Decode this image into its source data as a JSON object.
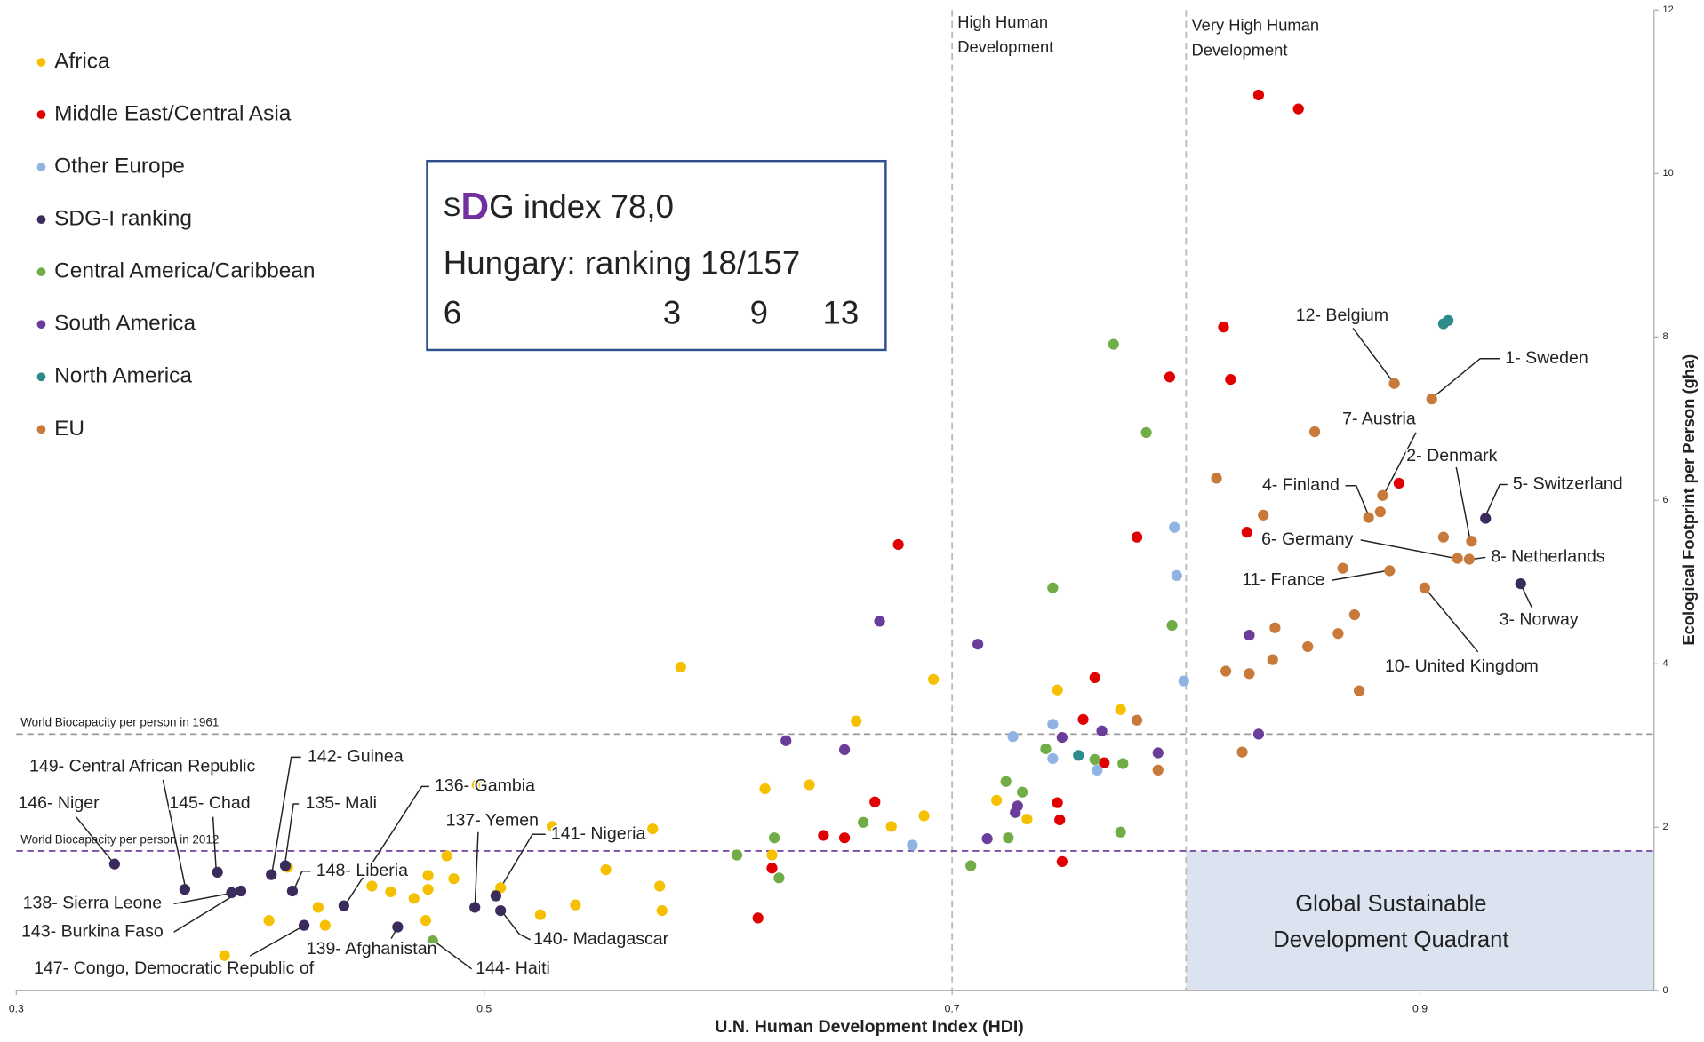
{
  "chart_data": {
    "type": "scatter",
    "xlabel": "U.N. Human Development Index  (HDI)",
    "ylabel": "Ecological Footprint per Person (gha)",
    "xlim": [
      0.3,
      1.0
    ],
    "ylim": [
      0,
      12
    ],
    "xticks": [
      0.3,
      0.5,
      0.7,
      0.9
    ],
    "yticks": [
      0,
      2,
      4,
      6,
      8,
      10,
      12
    ],
    "series": [
      {
        "name": "Africa",
        "color": "#f5c000",
        "x": [
          0.584,
          0.692,
          0.745,
          0.772,
          0.659,
          0.62,
          0.639,
          0.719,
          0.688,
          0.674,
          0.732,
          0.529,
          0.572,
          0.497,
          0.552,
          0.575,
          0.576,
          0.539,
          0.524,
          0.507,
          0.487,
          0.484,
          0.476,
          0.452,
          0.46,
          0.47,
          0.476,
          0.429,
          0.408,
          0.432,
          0.475,
          0.416,
          0.389,
          0.505,
          0.623
        ],
        "y": [
          3.96,
          3.81,
          3.68,
          3.44,
          3.3,
          2.47,
          2.52,
          2.33,
          2.14,
          2.01,
          2.1,
          2.01,
          1.98,
          2.52,
          1.48,
          1.28,
          0.98,
          1.05,
          0.93,
          1.26,
          1.37,
          1.65,
          1.41,
          1.28,
          1.21,
          1.13,
          1.24,
          1.02,
          0.86,
          0.8,
          0.86,
          1.51,
          0.43,
          1.17,
          1.66
        ]
      },
      {
        "name": "Middle East/Central Asia",
        "color": "#e00000",
        "x": [
          0.831,
          0.848,
          0.816,
          0.819,
          0.793,
          0.677,
          0.779,
          0.826,
          0.891,
          0.761,
          0.756,
          0.765,
          0.745,
          0.746,
          0.747,
          0.667,
          0.645,
          0.654,
          0.623,
          0.617
        ],
        "y": [
          10.96,
          10.79,
          8.12,
          7.48,
          7.51,
          5.46,
          5.55,
          5.61,
          6.21,
          3.83,
          3.32,
          2.79,
          2.3,
          2.09,
          1.58,
          2.31,
          1.9,
          1.87,
          1.5,
          0.89
        ]
      },
      {
        "name": "Other Europe",
        "color": "#8fb4e3",
        "x": [
          0.795,
          0.796,
          0.799,
          0.743,
          0.726,
          0.743,
          0.762,
          0.683
        ],
        "y": [
          5.67,
          5.08,
          3.79,
          3.26,
          3.11,
          2.84,
          2.7,
          1.78
        ]
      },
      {
        "name": "SDG-I ranking",
        "color": "#3b2b5c",
        "x": [
          0.342,
          0.372,
          0.386,
          0.392,
          0.396,
          0.409,
          0.415,
          0.418,
          0.423,
          0.44,
          0.496,
          0.505,
          0.507,
          0.463,
          0.943,
          0.928
        ],
        "y": [
          1.55,
          1.24,
          1.45,
          1.2,
          1.22,
          1.42,
          1.53,
          1.22,
          0.8,
          1.04,
          1.02,
          1.16,
          0.98,
          0.78,
          4.98,
          5.78
        ]
      },
      {
        "name": "Central America/Caribbean",
        "color": "#70ad47",
        "x": [
          0.769,
          0.783,
          0.743,
          0.794,
          0.74,
          0.723,
          0.73,
          0.761,
          0.773,
          0.724,
          0.772,
          0.708,
          0.662,
          0.624,
          0.608,
          0.626,
          0.478
        ],
        "y": [
          7.91,
          6.83,
          4.93,
          4.47,
          2.96,
          2.56,
          2.43,
          2.83,
          2.78,
          1.87,
          1.94,
          1.53,
          2.06,
          1.87,
          1.66,
          1.38,
          0.61
        ]
      },
      {
        "name": "South America",
        "color": "#6a3d9a",
        "x": [
          0.669,
          0.711,
          0.629,
          0.654,
          0.747,
          0.764,
          0.831,
          0.827,
          0.788,
          0.728,
          0.727,
          0.715
        ],
        "y": [
          4.52,
          4.24,
          3.06,
          2.95,
          3.1,
          3.18,
          3.14,
          4.35,
          2.91,
          2.26,
          2.18,
          1.86
        ]
      },
      {
        "name": "North America",
        "color": "#2e8b8b",
        "x": [
          0.91,
          0.912,
          0.754
        ],
        "y": [
          8.16,
          8.2,
          2.88
        ]
      },
      {
        "name": "EU",
        "color": "#c87a3a",
        "x": [
          0.905,
          0.889,
          0.855,
          0.813,
          0.884,
          0.883,
          0.878,
          0.833,
          0.91,
          0.922,
          0.916,
          0.921,
          0.887,
          0.867,
          0.902,
          0.872,
          0.865,
          0.838,
          0.852,
          0.837,
          0.827,
          0.817,
          0.874,
          0.779,
          0.824,
          0.788
        ],
        "y": [
          7.24,
          7.43,
          6.84,
          6.27,
          6.06,
          5.86,
          5.79,
          5.82,
          5.55,
          5.5,
          5.29,
          5.28,
          5.14,
          5.17,
          4.93,
          4.6,
          4.37,
          4.44,
          4.21,
          4.05,
          3.88,
          3.91,
          3.67,
          3.31,
          2.92,
          2.7
        ]
      }
    ],
    "reference_lines": [
      {
        "axis": "x",
        "value": 0.7,
        "color": "#bbbbbb",
        "label": [
          "High Human",
          "Development"
        ]
      },
      {
        "axis": "x",
        "value": 0.8,
        "color": "#bbbbbb",
        "label": [
          "Very High Human",
          "Development"
        ]
      },
      {
        "axis": "y",
        "value": 3.14,
        "color": "#999999",
        "label": "World Biocapacity per person in 1961"
      },
      {
        "axis": "y",
        "value": 1.71,
        "color": "#7b4fa6",
        "label": "World Biocapacity per person in 2012"
      }
    ],
    "quadrant": {
      "label": [
        "Global Sustainable",
        "Development Quadrant"
      ],
      "color": "#dce3f0"
    },
    "annotations": [
      "12- Belgium",
      "1- Sweden",
      "7- Austria",
      "2- Denmark",
      "4- Finland",
      "5- Switzerland",
      "6- Germany",
      "8- Netherlands",
      "11- France",
      "3- Norway",
      "10- United Kingdom",
      "142- Guinea",
      "149- Central African Republic",
      "146- Niger",
      "145- Chad",
      "135- Mali",
      "136- Gambia",
      "137- Yemen",
      "141- Nigeria",
      "148- Liberia",
      "138- Sierra Leone",
      "143- Burkina Faso",
      "139- Afghanistan",
      "140- Madagascar",
      "147- Congo, Democratic Republic of",
      "144- Haiti"
    ],
    "inset": {
      "title_parts": [
        "S",
        "D",
        "G index 78,0"
      ],
      "subtitle": "Hungary: ranking 18/157",
      "scores": [
        {
          "value": 6,
          "color": "#548235"
        },
        {
          "value": 3,
          "color": "#ff0000"
        },
        {
          "value": 9,
          "color": "#ff0000"
        },
        {
          "value": 13,
          "color": "#ff0000"
        }
      ]
    }
  }
}
